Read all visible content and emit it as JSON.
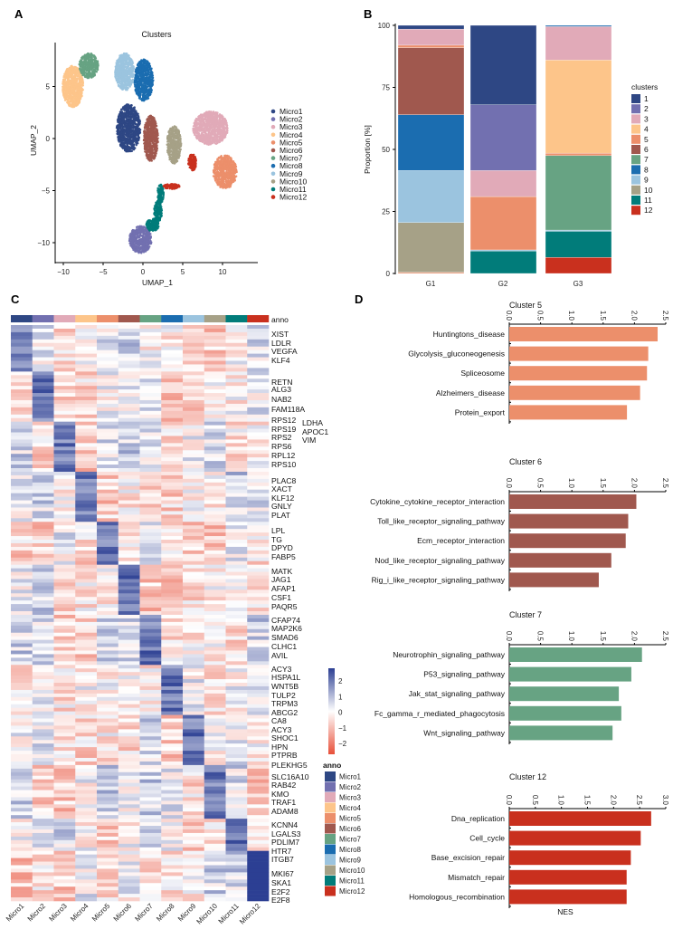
{
  "panel_labels": {
    "a": "A",
    "b": "B",
    "c": "C",
    "d": "D"
  },
  "colors": {
    "Micro1": "#2e4784",
    "Micro2": "#7270b0",
    "Micro3": "#e1aab8",
    "Micro4": "#fdc58a",
    "Micro5": "#ec8f6b",
    "Micro6": "#a0584e",
    "Micro7": "#67a383",
    "Micro8": "#1b6db0",
    "Micro9": "#9bc4df",
    "Micro10": "#a6a187",
    "Micro11": "#017c7a",
    "Micro12": "#c9301e",
    "heat_high": "#2c3f93",
    "heat_mid": "#ffffff",
    "heat_low": "#e8503a"
  },
  "chart_data": [
    {
      "id": "umap",
      "type": "scatter",
      "title": "Clusters",
      "xlabel": "UMAP_1",
      "ylabel": "UMAP_2",
      "xticks": [
        -10,
        -5,
        0,
        5,
        10
      ],
      "yticks": [
        5,
        0,
        -5,
        -10
      ],
      "xlim": [
        -11,
        14.5
      ],
      "ylim": [
        -11.8,
        9.3
      ],
      "legend": [
        "Micro1",
        "Micro2",
        "Micro3",
        "Micro4",
        "Micro5",
        "Micro6",
        "Micro7",
        "Micro8",
        "Micro9",
        "Micro10",
        "Micro11",
        "Micro12"
      ],
      "legend_position": "right",
      "regions": {
        "Micro1": [
          [
            -1.8,
            1.0,
            1.5,
            2.3
          ]
        ],
        "Micro2": [
          [
            -0.3,
            -9.7,
            1.4,
            1.3
          ]
        ],
        "Micro3": [
          [
            8.5,
            1.0,
            2.2,
            1.6
          ]
        ],
        "Micro4": [
          [
            -8.8,
            5.0,
            1.3,
            2.0
          ]
        ],
        "Micro5": [
          [
            10.3,
            -3.2,
            1.5,
            1.6
          ]
        ],
        "Micro6": [
          [
            1.0,
            0.0,
            0.9,
            2.2
          ]
        ],
        "Micro7": [
          [
            -6.8,
            7.0,
            1.2,
            1.2
          ]
        ],
        "Micro8": [
          [
            0.1,
            5.6,
            1.2,
            2.0
          ]
        ],
        "Micro9": [
          [
            -2.3,
            6.4,
            1.2,
            1.8
          ]
        ],
        "Micro10": [
          [
            3.9,
            -0.6,
            0.9,
            1.8
          ]
        ],
        "Micro11": [
          [
            1.2,
            -8.3,
            0.8,
            0.6
          ],
          [
            1.9,
            -7.0,
            0.5,
            1.0
          ],
          [
            2.2,
            -5.3,
            0.4,
            0.9
          ]
        ],
        "Micro12": [
          [
            6.2,
            -2.3,
            0.5,
            0.8
          ],
          [
            3.6,
            -4.6,
            1.0,
            0.25
          ]
        ]
      }
    },
    {
      "id": "proportion",
      "type": "bar",
      "stacked": true,
      "ylabel": "Proportion [%]",
      "ylim": [
        0,
        100
      ],
      "yticks": [
        0,
        25,
        50,
        75,
        100
      ],
      "categories": [
        "G1",
        "G2",
        "G3"
      ],
      "legend_title": "clusters",
      "legend": [
        "1",
        "2",
        "3",
        "4",
        "5",
        "6",
        "7",
        "8",
        "9",
        "10",
        "11",
        "12"
      ],
      "legend_position": "right",
      "stacks": {
        "G1": [
          {
            "c": "5",
            "v": 0.5
          },
          {
            "c": "10",
            "v": 20
          },
          {
            "c": "9",
            "v": 21
          },
          {
            "c": "8",
            "v": 22.5
          },
          {
            "c": "6",
            "v": 27
          },
          {
            "c": "5",
            "v": 1
          },
          {
            "c": "3",
            "v": 6.5
          },
          {
            "c": "1",
            "v": 1.5
          }
        ],
        "G2": [
          {
            "c": "11",
            "v": 9
          },
          {
            "c": "9",
            "v": 0.5
          },
          {
            "c": "5",
            "v": 21.5
          },
          {
            "c": "3",
            "v": 10.5
          },
          {
            "c": "2",
            "v": 26.5
          },
          {
            "c": "1",
            "v": 32
          }
        ],
        "G3": [
          {
            "c": "12",
            "v": 6.5
          },
          {
            "c": "11",
            "v": 10.5
          },
          {
            "c": "9",
            "v": 0.5
          },
          {
            "c": "7",
            "v": 30
          },
          {
            "c": "5",
            "v": 1
          },
          {
            "c": "4",
            "v": 37.5
          },
          {
            "c": "3",
            "v": 13.5
          },
          {
            "c": "8",
            "v": 0.5
          }
        ]
      }
    },
    {
      "id": "heatmap",
      "type": "heatmap",
      "columns": [
        "Micro1",
        "Micro2",
        "Micro3",
        "Micro4",
        "Micro5",
        "Micro6",
        "Micro7",
        "Micro8",
        "Micro9",
        "Micro10",
        "Micro11",
        "Micro12"
      ],
      "anno_label": "anno",
      "row_blocks": [
        13,
        14,
        14,
        14,
        12,
        14,
        14,
        14,
        14,
        15,
        9,
        14
      ],
      "scale_ticks": [
        "2",
        "1",
        "0",
        "−1",
        "−2"
      ],
      "scale_range": [
        -2.5,
        2.5
      ],
      "legend_title": "anno",
      "genes": [
        "XIST",
        "LDLR",
        "VEGFA",
        "KLF4",
        "RETN",
        "ALG3",
        "NAB2",
        "FAM118A",
        "RPS12",
        "RPS19",
        "RPS2",
        "RPS6",
        "RPL12",
        "RPS10",
        "PLAC8",
        "XACT",
        "KLF12",
        "GNLY",
        "PLAT",
        "LPL",
        "TG",
        "DPYD",
        "FABP5",
        "MATK",
        "JAG1",
        "AFAP1",
        "CSF1",
        "PAQR5",
        "CFAP74",
        "MAP2K6",
        "SMAD6",
        "CLHC1",
        "AVIL",
        "ACY3",
        "HSPA1L",
        "WNT5B",
        "TULP2",
        "TRPM3",
        "ABCG2",
        "CA8",
        "ACY3",
        "SHOC1",
        "HPN",
        "PTPRB",
        "PLEKHG5",
        "SLC16A10",
        "RAB42",
        "KMO",
        "TRAF1",
        "ADAM8",
        "KCNN4",
        "LGALS3",
        "PDLIM7",
        "HTR7",
        "ITGB7",
        "MKI67",
        "SKA1",
        "E2F2",
        "E2F8"
      ],
      "genes_col2": [
        "LDHA",
        "APOC1",
        "VIM"
      ]
    },
    {
      "id": "gsea",
      "type": "bar",
      "orientation": "horizontal",
      "xlabel": "NES",
      "panels": [
        {
          "title": "Cluster 5",
          "color_key": "Micro5",
          "xlim": [
            0,
            2.5
          ],
          "xticks": [
            "0.0",
            "0.5",
            "1.0",
            "1.5",
            "2.0",
            "2.5"
          ],
          "terms": [
            "Huntingtons_disease",
            "Glycolysis_gluconeogenesis",
            "Spliceosome",
            "Alzheimers_disease",
            "Protein_export"
          ],
          "values": [
            2.37,
            2.22,
            2.2,
            2.09,
            1.88
          ]
        },
        {
          "title": "Cluster 6",
          "color_key": "Micro6",
          "xlim": [
            0,
            2.5
          ],
          "xticks": [
            "0.0",
            "0.5",
            "1.0",
            "1.5",
            "2.0",
            "2.5"
          ],
          "terms": [
            "Cytokine_cytokine_receptor_interaction",
            "Toll_like_receptor_signaling_pathway",
            "Ecm_receptor_interaction",
            "Nod_like_receptor_signaling_pathway",
            "Rig_i_like_receptor_signaling_pathway"
          ],
          "values": [
            2.03,
            1.9,
            1.86,
            1.63,
            1.43
          ]
        },
        {
          "title": "Cluster 7",
          "color_key": "Micro7",
          "xlim": [
            0,
            2.5
          ],
          "xticks": [
            "0.0",
            "0.5",
            "1.0",
            "1.5",
            "2.0",
            "2.5"
          ],
          "terms": [
            "Neurotrophin_signaling_pathway",
            "P53_signaling_pathway",
            "Jak_stat_signaling_pathway",
            "Fc_gamma_r_mediated_phagocytosis",
            "Wnt_signaling_pathway"
          ],
          "values": [
            2.12,
            1.95,
            1.75,
            1.79,
            1.65
          ]
        },
        {
          "title": "Cluster 12",
          "color_key": "Micro12",
          "xlim": [
            0,
            3.0
          ],
          "xticks": [
            "0.0",
            "0.5",
            "1.0",
            "1.5",
            "2.0",
            "2.5",
            "3.0"
          ],
          "terms": [
            "Dna_replication",
            "Cell_cycle",
            "Base_excision_repair",
            "Mismatch_repair",
            "Homologous_recombination"
          ],
          "values": [
            2.72,
            2.52,
            2.33,
            2.25,
            2.25
          ]
        }
      ]
    }
  ]
}
